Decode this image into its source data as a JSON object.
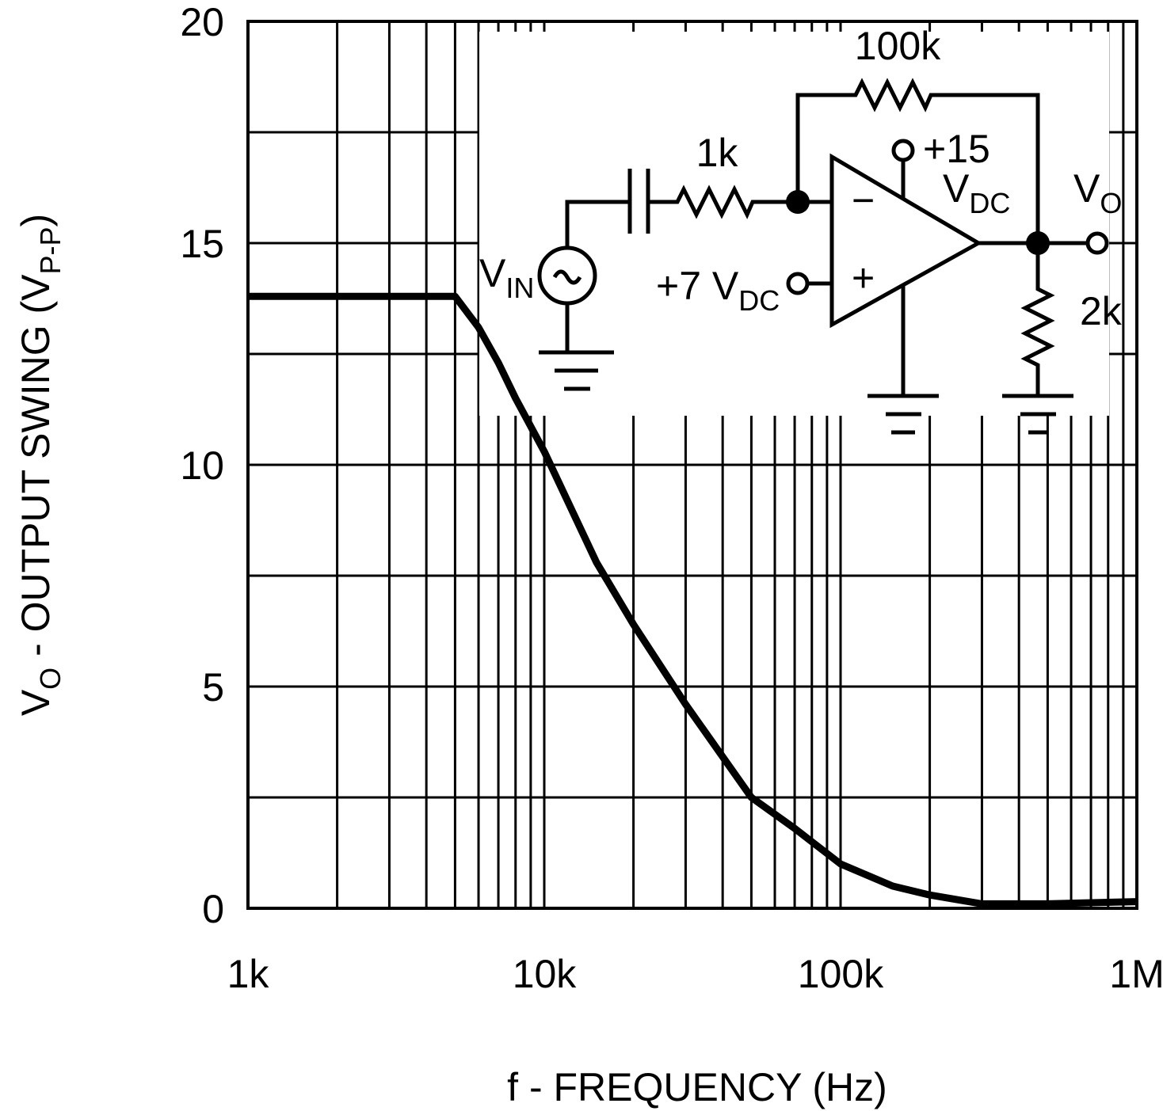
{
  "chart_data": {
    "type": "line",
    "xlabel": "f - FREQUENCY (Hz)",
    "ylabel_parts": [
      "V",
      "O",
      " - OUTPUT SWING (V",
      "P-P",
      ")"
    ],
    "x": [
      1000,
      5000,
      6000,
      7000,
      8000,
      10000,
      15000,
      20000,
      30000,
      50000,
      70000,
      100000,
      150000,
      200000,
      300000,
      500000,
      1000000
    ],
    "series": [
      {
        "color": "#000000",
        "values": [
          13.8,
          13.8,
          13.1,
          12.3,
          11.5,
          10.3,
          7.8,
          6.4,
          4.6,
          2.5,
          1.8,
          1.0,
          0.5,
          0.3,
          0.1,
          0.1,
          0.15
        ]
      }
    ],
    "log_x": true,
    "xlim": [
      1000,
      1000000
    ],
    "xticks": [
      {
        "value": 1000,
        "label": "1k"
      },
      {
        "value": 10000,
        "label": "10k"
      },
      {
        "value": 100000,
        "label": "100k"
      },
      {
        "value": 1000000,
        "label": "1M"
      }
    ],
    "x_minor_ticks": [
      2000,
      3000,
      4000,
      5000,
      6000,
      7000,
      8000,
      9000,
      20000,
      30000,
      40000,
      50000,
      60000,
      70000,
      80000,
      90000,
      200000,
      300000,
      400000,
      500000,
      600000,
      700000,
      800000,
      900000
    ],
    "ylim": [
      0,
      20
    ],
    "yticks": [
      0,
      5,
      10,
      15,
      20
    ],
    "y_minor_ticks": [
      2.5,
      7.5,
      12.5,
      17.5
    ],
    "grid": true
  },
  "inset": {
    "feedback": "100k",
    "input_r": "1k",
    "supply": "+15",
    "supply_unit": [
      "V",
      "DC"
    ],
    "output": [
      "V",
      "O"
    ],
    "minus": "−",
    "plus": "+",
    "bias": [
      "+7 V",
      "DC"
    ],
    "load": "2k",
    "source": [
      "V",
      "IN"
    ]
  }
}
